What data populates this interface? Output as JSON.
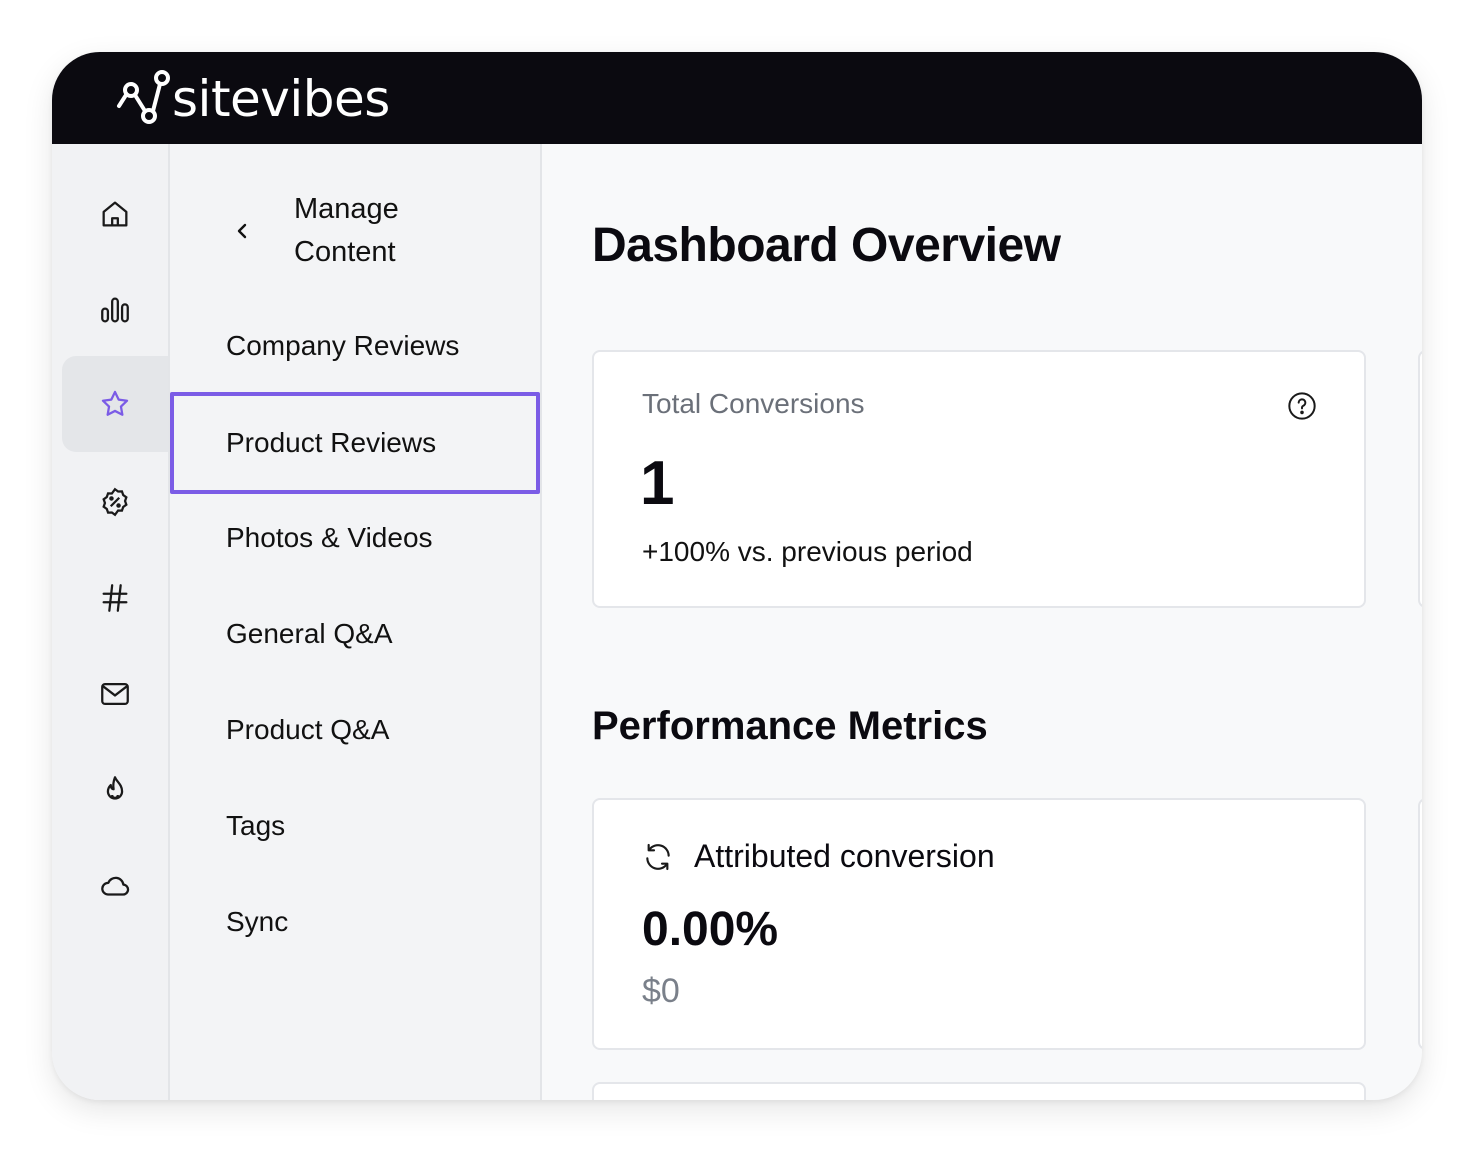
{
  "app": {
    "brand": "sitevibes",
    "accent_color": "#7b5ce6",
    "topbar_color": "#0b0a10"
  },
  "rail": {
    "items": [
      {
        "icon": "home-icon"
      },
      {
        "icon": "bar-chart-icon"
      },
      {
        "icon": "star-icon",
        "active": true
      },
      {
        "icon": "discount-badge-icon"
      },
      {
        "icon": "hashtag-icon"
      },
      {
        "icon": "mail-icon"
      },
      {
        "icon": "flame-icon"
      },
      {
        "icon": "cloud-icon"
      }
    ]
  },
  "subnav": {
    "back_title": "Manage Content",
    "items": [
      {
        "label": "Company Reviews"
      },
      {
        "label": "Product Reviews",
        "selected": true
      },
      {
        "label": "Photos & Videos"
      },
      {
        "label": "General Q&A"
      },
      {
        "label": "Product Q&A"
      },
      {
        "label": "Tags"
      },
      {
        "label": "Sync"
      }
    ]
  },
  "main": {
    "title": "Dashboard Overview",
    "total_conversions": {
      "label": "Total Conversions",
      "value": "1",
      "change": "+100% vs. previous period"
    },
    "performance_title": "Performance Metrics",
    "attributed": {
      "label": "Attributed conversion",
      "value": "0.00%",
      "amount": "$0"
    }
  }
}
